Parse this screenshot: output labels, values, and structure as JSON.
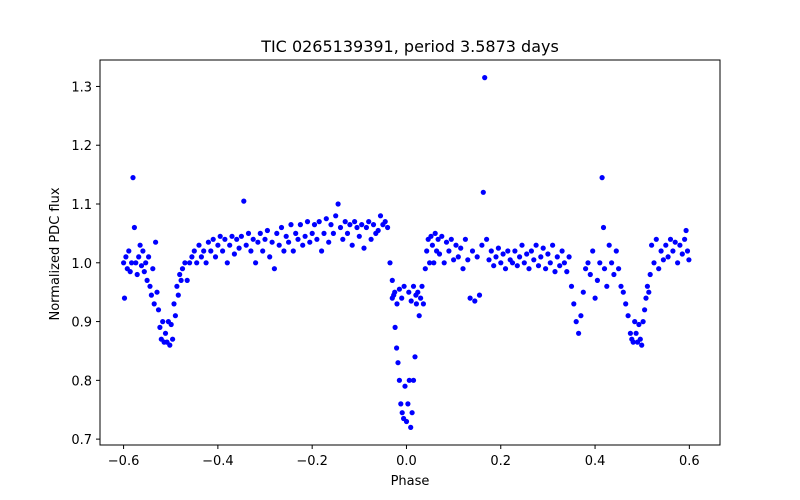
{
  "chart_data": {
    "type": "scatter",
    "title": "TIC 0265139391, period 3.5873 days",
    "xlabel": "Phase",
    "ylabel": "Normalized PDC flux",
    "xlim": [
      -0.65,
      0.665
    ],
    "ylim": [
      0.69,
      1.345
    ],
    "xticks": [
      -0.6,
      -0.4,
      -0.2,
      0.0,
      0.2,
      0.4,
      0.6
    ],
    "xtick_labels": [
      "−0.6",
      "−0.4",
      "−0.2",
      "0.0",
      "0.2",
      "0.4",
      "0.6"
    ],
    "yticks": [
      0.7,
      0.8,
      0.9,
      1.0,
      1.1,
      1.2,
      1.3
    ],
    "ytick_labels": [
      "0.7",
      "0.8",
      "0.9",
      "1.0",
      "1.1",
      "1.2",
      "1.3"
    ],
    "grid": false,
    "color": "#0000ff",
    "series": [
      {
        "points": [
          [
            -0.6,
            1.0
          ],
          [
            -0.598,
            0.94
          ],
          [
            -0.595,
            1.01
          ],
          [
            -0.592,
            0.99
          ],
          [
            -0.589,
            1.02
          ],
          [
            -0.586,
            0.985
          ],
          [
            -0.583,
            1.0
          ],
          [
            -0.58,
            1.145
          ],
          [
            -0.577,
            1.06
          ],
          [
            -0.574,
            1.0
          ],
          [
            -0.571,
            0.98
          ],
          [
            -0.568,
            1.01
          ],
          [
            -0.565,
            1.03
          ],
          [
            -0.562,
            0.995
          ],
          [
            -0.559,
            1.02
          ],
          [
            -0.556,
            0.985
          ],
          [
            -0.553,
            1.0
          ],
          [
            -0.55,
            0.97
          ],
          [
            -0.547,
            1.01
          ],
          [
            -0.544,
            0.96
          ],
          [
            -0.541,
            0.945
          ],
          [
            -0.538,
            0.99
          ],
          [
            -0.535,
            0.93
          ],
          [
            -0.532,
            1.035
          ],
          [
            -0.529,
            0.95
          ],
          [
            -0.526,
            0.92
          ],
          [
            -0.523,
            0.89
          ],
          [
            -0.52,
            0.87
          ],
          [
            -0.517,
            0.9
          ],
          [
            -0.514,
            0.865
          ],
          [
            -0.511,
            0.88
          ],
          [
            -0.508,
            0.865
          ],
          [
            -0.505,
            0.9
          ],
          [
            -0.502,
            0.86
          ],
          [
            -0.499,
            0.895
          ],
          [
            -0.496,
            0.87
          ],
          [
            -0.493,
            0.93
          ],
          [
            -0.49,
            0.91
          ],
          [
            -0.487,
            0.96
          ],
          [
            -0.484,
            0.945
          ],
          [
            -0.481,
            0.98
          ],
          [
            -0.478,
            0.97
          ],
          [
            -0.475,
            0.99
          ],
          [
            -0.47,
            1.0
          ],
          [
            -0.465,
            0.97
          ],
          [
            -0.46,
            1.0
          ],
          [
            -0.455,
            1.01
          ],
          [
            -0.45,
            1.02
          ],
          [
            -0.445,
            1.0
          ],
          [
            -0.44,
            1.03
          ],
          [
            -0.435,
            1.01
          ],
          [
            -0.43,
            1.02
          ],
          [
            -0.425,
            1.0
          ],
          [
            -0.42,
            1.035
          ],
          [
            -0.415,
            1.02
          ],
          [
            -0.41,
            1.04
          ],
          [
            -0.405,
            1.01
          ],
          [
            -0.4,
            1.03
          ],
          [
            -0.395,
            1.045
          ],
          [
            -0.39,
            1.02
          ],
          [
            -0.385,
            1.04
          ],
          [
            -0.38,
            1.0
          ],
          [
            -0.375,
            1.03
          ],
          [
            -0.37,
            1.045
          ],
          [
            -0.365,
            1.015
          ],
          [
            -0.36,
            1.04
          ],
          [
            -0.355,
            1.025
          ],
          [
            -0.35,
            1.045
          ],
          [
            -0.345,
            1.105
          ],
          [
            -0.34,
            1.03
          ],
          [
            -0.335,
            1.05
          ],
          [
            -0.33,
            1.02
          ],
          [
            -0.325,
            1.04
          ],
          [
            -0.32,
            1.0
          ],
          [
            -0.315,
            1.035
          ],
          [
            -0.31,
            1.05
          ],
          [
            -0.305,
            1.02
          ],
          [
            -0.3,
            1.04
          ],
          [
            -0.295,
            1.055
          ],
          [
            -0.29,
            1.01
          ],
          [
            -0.285,
            1.035
          ],
          [
            -0.28,
            0.99
          ],
          [
            -0.275,
            1.05
          ],
          [
            -0.27,
            1.03
          ],
          [
            -0.265,
            1.06
          ],
          [
            -0.26,
            1.02
          ],
          [
            -0.255,
            1.045
          ],
          [
            -0.25,
            1.035
          ],
          [
            -0.245,
            1.065
          ],
          [
            -0.24,
            1.02
          ],
          [
            -0.235,
            1.05
          ],
          [
            -0.23,
            1.04
          ],
          [
            -0.225,
            1.065
          ],
          [
            -0.22,
            1.03
          ],
          [
            -0.215,
            1.045
          ],
          [
            -0.21,
            1.07
          ],
          [
            -0.205,
            1.035
          ],
          [
            -0.2,
            1.05
          ],
          [
            -0.195,
            1.065
          ],
          [
            -0.19,
            1.04
          ],
          [
            -0.185,
            1.07
          ],
          [
            -0.18,
            1.02
          ],
          [
            -0.175,
            1.05
          ],
          [
            -0.17,
            1.075
          ],
          [
            -0.165,
            1.035
          ],
          [
            -0.16,
            1.065
          ],
          [
            -0.155,
            1.05
          ],
          [
            -0.15,
            1.08
          ],
          [
            -0.145,
            1.1
          ],
          [
            -0.14,
            1.06
          ],
          [
            -0.135,
            1.04
          ],
          [
            -0.13,
            1.07
          ],
          [
            -0.125,
            1.05
          ],
          [
            -0.12,
            1.065
          ],
          [
            -0.115,
            1.03
          ],
          [
            -0.11,
            1.07
          ],
          [
            -0.105,
            1.06
          ],
          [
            -0.1,
            1.045
          ],
          [
            -0.095,
            1.065
          ],
          [
            -0.09,
            1.025
          ],
          [
            -0.085,
            1.06
          ],
          [
            -0.08,
            1.07
          ],
          [
            -0.075,
            1.04
          ],
          [
            -0.07,
            1.065
          ],
          [
            -0.065,
            1.05
          ],
          [
            -0.06,
            1.055
          ],
          [
            -0.055,
            1.08
          ],
          [
            -0.05,
            1.065
          ],
          [
            -0.045,
            1.07
          ],
          [
            -0.04,
            1.06
          ],
          [
            -0.035,
            1.0
          ],
          [
            -0.03,
            0.97
          ],
          [
            -0.027,
            0.945
          ],
          [
            -0.024,
            0.89
          ],
          [
            -0.021,
            0.855
          ],
          [
            -0.018,
            0.83
          ],
          [
            -0.015,
            0.8
          ],
          [
            -0.012,
            0.76
          ],
          [
            -0.009,
            0.745
          ],
          [
            -0.006,
            0.735
          ],
          [
            -0.003,
            0.79
          ],
          [
            0.0,
            0.73
          ],
          [
            0.003,
            0.76
          ],
          [
            0.006,
            0.8
          ],
          [
            0.009,
            0.72
          ],
          [
            0.012,
            0.745
          ],
          [
            0.015,
            0.8
          ],
          [
            0.018,
            0.84
          ],
          [
            0.021,
            0.93
          ],
          [
            0.024,
            0.95
          ],
          [
            0.027,
            0.91
          ],
          [
            0.03,
            0.94
          ],
          [
            0.033,
            0.96
          ],
          [
            0.036,
            0.93
          ],
          [
            -0.03,
            0.94
          ],
          [
            -0.025,
            0.95
          ],
          [
            -0.02,
            0.93
          ],
          [
            -0.015,
            0.955
          ],
          [
            -0.01,
            0.94
          ],
          [
            -0.005,
            0.96
          ],
          [
            0.005,
            0.95
          ],
          [
            0.01,
            0.935
          ],
          [
            0.015,
            0.96
          ],
          [
            0.02,
            0.945
          ],
          [
            0.04,
            0.99
          ],
          [
            0.043,
            1.02
          ],
          [
            0.046,
            1.04
          ],
          [
            0.049,
            1.0
          ],
          [
            0.052,
            1.045
          ],
          [
            0.055,
            1.03
          ],
          [
            0.058,
            1.0
          ],
          [
            0.061,
            1.05
          ],
          [
            0.064,
            1.02
          ],
          [
            0.067,
            1.04
          ],
          [
            0.07,
            1.015
          ],
          [
            0.075,
            1.045
          ],
          [
            0.08,
            1.0
          ],
          [
            0.085,
            1.035
          ],
          [
            0.09,
            1.02
          ],
          [
            0.095,
            1.04
          ],
          [
            0.1,
            1.005
          ],
          [
            0.105,
            1.03
          ],
          [
            0.11,
            1.01
          ],
          [
            0.115,
            1.025
          ],
          [
            0.12,
            0.99
          ],
          [
            0.125,
            1.04
          ],
          [
            0.13,
            1.005
          ],
          [
            0.135,
            0.94
          ],
          [
            0.14,
            1.02
          ],
          [
            0.145,
            0.935
          ],
          [
            0.15,
            1.01
          ],
          [
            0.155,
            0.945
          ],
          [
            0.16,
            1.03
          ],
          [
            0.163,
            1.12
          ],
          [
            0.166,
            1.315
          ],
          [
            0.17,
            1.04
          ],
          [
            0.175,
            1.005
          ],
          [
            0.18,
            1.02
          ],
          [
            0.185,
            0.995
          ],
          [
            0.19,
            1.01
          ],
          [
            0.195,
            1.025
          ],
          [
            0.2,
            1.0
          ],
          [
            0.205,
            1.015
          ],
          [
            0.21,
            0.99
          ],
          [
            0.215,
            1.02
          ],
          [
            0.22,
            1.005
          ],
          [
            0.225,
            1.0
          ],
          [
            0.23,
            1.02
          ],
          [
            0.235,
            0.995
          ],
          [
            0.24,
            1.01
          ],
          [
            0.245,
            1.03
          ],
          [
            0.25,
            1.0
          ],
          [
            0.255,
            1.015
          ],
          [
            0.26,
            0.99
          ],
          [
            0.265,
            1.02
          ],
          [
            0.27,
            1.005
          ],
          [
            0.275,
            1.03
          ],
          [
            0.28,
            0.995
          ],
          [
            0.285,
            1.01
          ],
          [
            0.29,
            1.025
          ],
          [
            0.295,
            0.99
          ],
          [
            0.3,
            1.015
          ],
          [
            0.305,
            1.0
          ],
          [
            0.31,
            1.03
          ],
          [
            0.315,
            0.985
          ],
          [
            0.32,
            1.01
          ],
          [
            0.325,
            0.995
          ],
          [
            0.33,
            1.02
          ],
          [
            0.335,
            1.0
          ],
          [
            0.34,
            0.985
          ],
          [
            0.345,
            1.01
          ],
          [
            0.35,
            0.96
          ],
          [
            0.355,
            0.93
          ],
          [
            0.36,
            0.9
          ],
          [
            0.365,
            0.88
          ],
          [
            0.37,
            0.91
          ],
          [
            0.375,
            0.95
          ],
          [
            0.38,
            0.99
          ],
          [
            0.385,
            1.0
          ],
          [
            0.39,
            0.98
          ],
          [
            0.395,
            1.02
          ],
          [
            0.4,
            0.94
          ],
          [
            0.405,
            0.97
          ],
          [
            0.41,
            1.0
          ],
          [
            0.415,
            1.145
          ],
          [
            0.418,
            1.06
          ],
          [
            0.42,
            0.99
          ],
          [
            0.425,
            0.96
          ],
          [
            0.43,
            1.03
          ],
          [
            0.435,
            1.0
          ],
          [
            0.44,
            0.98
          ],
          [
            0.445,
            1.02
          ],
          [
            0.45,
            0.99
          ],
          [
            0.455,
            0.96
          ],
          [
            0.46,
            0.95
          ],
          [
            0.465,
            0.93
          ],
          [
            0.47,
            0.91
          ],
          [
            0.475,
            0.88
          ],
          [
            0.478,
            0.87
          ],
          [
            0.481,
            0.865
          ],
          [
            0.484,
            0.9
          ],
          [
            0.487,
            0.88
          ],
          [
            0.49,
            0.865
          ],
          [
            0.493,
            0.895
          ],
          [
            0.496,
            0.87
          ],
          [
            0.499,
            0.86
          ],
          [
            0.502,
            0.9
          ],
          [
            0.505,
            0.92
          ],
          [
            0.508,
            0.94
          ],
          [
            0.511,
            0.96
          ],
          [
            0.514,
            0.95
          ],
          [
            0.517,
            0.98
          ],
          [
            0.52,
            1.03
          ],
          [
            0.525,
            1.0
          ],
          [
            0.53,
            1.04
          ],
          [
            0.535,
            0.99
          ],
          [
            0.54,
            1.02
          ],
          [
            0.545,
            1.005
          ],
          [
            0.55,
            1.03
          ],
          [
            0.555,
            1.01
          ],
          [
            0.56,
            1.04
          ],
          [
            0.565,
            1.02
          ],
          [
            0.57,
            1.035
          ],
          [
            0.575,
            1.0
          ],
          [
            0.58,
            1.03
          ],
          [
            0.585,
            1.015
          ],
          [
            0.59,
            1.04
          ],
          [
            0.593,
            1.055
          ],
          [
            0.596,
            1.02
          ],
          [
            0.599,
            1.005
          ]
        ]
      }
    ]
  }
}
